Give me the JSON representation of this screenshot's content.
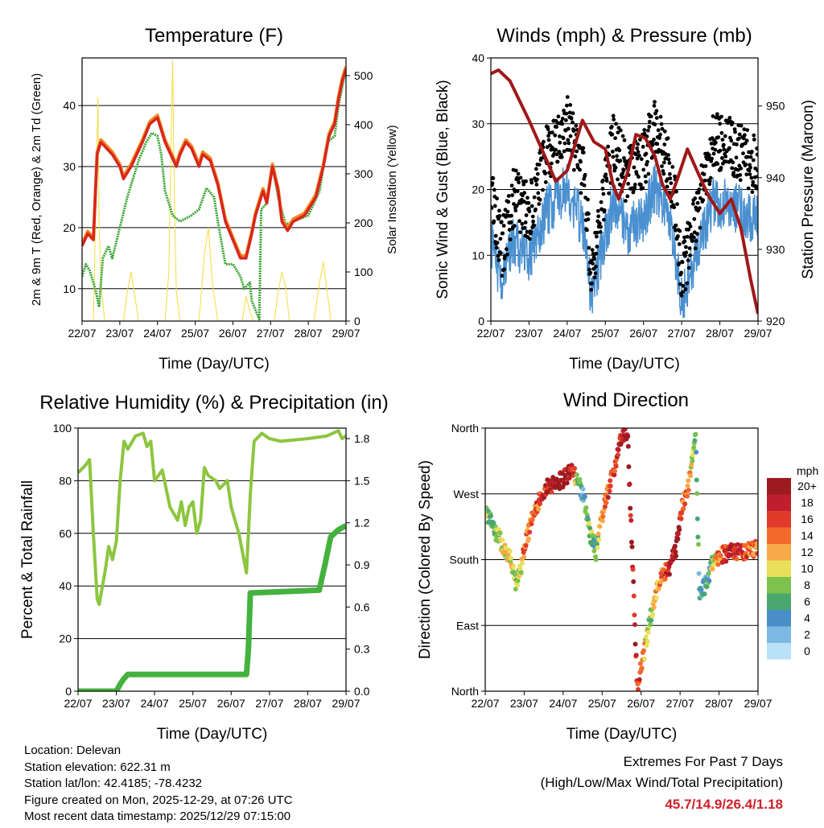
{
  "x_ticks": [
    "22/07",
    "23/07",
    "24/07",
    "25/07",
    "26/07",
    "27/07",
    "28/07",
    "29/07"
  ],
  "colors": {
    "temp": "#d9261c",
    "temp9m": "#f08a24",
    "dew": "#3aa635",
    "solar": "#f5dc3c",
    "wind": "#4a90d0",
    "gust": "#000000",
    "pressure": "#a01818",
    "rh": "#8cc63f",
    "precip": "#44b23e",
    "extremes": "#d0202a"
  },
  "chart_data": [
    {
      "type": "line",
      "title": "Temperature (F)",
      "xlabel": "Time (Day/UTC)",
      "ylabel": "2m & 9m T (Red, Orange) & 2m Td (Green)",
      "ylabel_right": "Solar Insolation (Yellow)",
      "ylim": [
        4.7,
        47.8
      ],
      "ylim_right": [
        0,
        536
      ],
      "yticks": [
        {
          "v": 10,
          "label": "10"
        },
        {
          "v": 20,
          "label": "20"
        },
        {
          "v": 30,
          "label": "30"
        },
        {
          "v": 40,
          "label": "40"
        }
      ],
      "yticks_right": [
        {
          "v": 0,
          "label": "0"
        },
        {
          "v": 100,
          "label": "100"
        },
        {
          "v": 200,
          "label": "200"
        },
        {
          "v": 300,
          "label": "300"
        },
        {
          "v": 400,
          "label": "400"
        },
        {
          "v": 500,
          "label": "500"
        }
      ],
      "series": [
        {
          "name": "2m T",
          "x": [
            0,
            0.15,
            0.3,
            0.4,
            0.5,
            0.8,
            1.0,
            1.1,
            1.3,
            1.6,
            1.8,
            2.0,
            2.2,
            2.5,
            2.6,
            2.75,
            2.9,
            3.1,
            3.2,
            3.4,
            3.6,
            3.8,
            4.0,
            4.2,
            4.35,
            4.5,
            4.6,
            4.8,
            4.9,
            5.05,
            5.2,
            5.3,
            5.45,
            5.6,
            5.9,
            6.2,
            6.4,
            6.55,
            6.7,
            6.8,
            6.9,
            7.0
          ],
          "y": [
            17,
            19,
            18,
            32,
            34,
            32,
            30,
            28,
            30,
            34,
            37,
            38,
            34,
            30,
            32,
            34,
            33,
            30,
            32,
            31,
            27,
            21,
            18,
            15,
            15,
            19,
            22,
            26,
            24,
            30,
            26,
            21,
            19.5,
            21,
            22,
            25,
            30,
            35,
            37,
            41,
            44,
            46
          ]
        },
        {
          "name": "2m Td",
          "x": [
            0,
            0.1,
            0.2,
            0.35,
            0.45,
            0.55,
            0.7,
            0.8,
            1.0,
            1.2,
            1.5,
            1.7,
            1.85,
            2.0,
            2.1,
            2.2,
            2.4,
            2.6,
            2.9,
            3.1,
            3.3,
            3.5,
            3.6,
            3.8,
            4.0,
            4.2,
            4.3,
            4.45,
            4.5,
            4.6,
            4.7,
            4.75,
            4.9,
            5.05,
            5.2,
            5.4,
            5.6,
            6.0,
            6.3,
            6.5,
            6.7,
            6.8,
            7.0
          ],
          "y": [
            12,
            14,
            13,
            10,
            7,
            15,
            17,
            15,
            20,
            25,
            31,
            34,
            35.5,
            35,
            32,
            26,
            22,
            21,
            22,
            23,
            26.5,
            25,
            21,
            14,
            14,
            12,
            10,
            11,
            8,
            6.5,
            5,
            23,
            24,
            30,
            25,
            20.5,
            21,
            22,
            26,
            34,
            35,
            40,
            46
          ]
        },
        {
          "name": "Solar",
          "axis": "right",
          "x": [
            0,
            0.3,
            0.38,
            0.42,
            0.45,
            0.5,
            0.6,
            1.1,
            1.2,
            1.3,
            1.4,
            1.5,
            2.2,
            2.3,
            2.4,
            2.45,
            2.5,
            2.6,
            3.1,
            3.25,
            3.35,
            3.45,
            3.6,
            4.25,
            4.35,
            4.45,
            4.55,
            5.1,
            5.2,
            5.3,
            5.4,
            5.5,
            6.15,
            6.3,
            6.4,
            6.5,
            6.6,
            7.0
          ],
          "y": [
            0,
            0,
            300,
            455,
            200,
            80,
            0,
            0,
            60,
            100,
            50,
            0,
            0,
            100,
            530,
            250,
            60,
            0,
            0,
            140,
            190,
            80,
            0,
            0,
            50,
            20,
            0,
            0,
            60,
            100,
            70,
            0,
            0,
            80,
            120,
            60,
            0,
            0
          ]
        }
      ]
    },
    {
      "type": "line",
      "title": "Winds (mph) & Pressure (mb)",
      "xlabel": "Time (Day/UTC)",
      "ylabel": "Sonic Wind & Gust (Blue, Black)",
      "ylabel_right": "Station Pressure (Maroon)",
      "ylim": [
        0,
        40
      ],
      "ylim_right": [
        920,
        956.7
      ],
      "yticks": [
        {
          "v": 0,
          "label": "0"
        },
        {
          "v": 10,
          "label": "10"
        },
        {
          "v": 20,
          "label": "20"
        },
        {
          "v": 30,
          "label": "30"
        },
        {
          "v": 40,
          "label": "40"
        }
      ],
      "yticks_right": [
        {
          "v": 920,
          "label": "920"
        },
        {
          "v": 930,
          "label": "930"
        },
        {
          "v": 940,
          "label": "940"
        },
        {
          "v": 950,
          "label": "950"
        }
      ],
      "series": [
        {
          "name": "Sonic Wind",
          "x": [
            0,
            0.3,
            0.6,
            1.0,
            1.5,
            2.0,
            2.4,
            2.65,
            2.8,
            3.2,
            3.6,
            4.0,
            4.3,
            4.5,
            4.8,
            5.0,
            5.3,
            5.8,
            6.2,
            6.5,
            7.0
          ],
          "y": [
            12,
            6,
            12,
            10,
            17,
            20,
            15,
            3,
            8,
            18,
            14,
            16,
            20,
            18,
            12,
            3,
            8,
            18,
            18,
            17,
            15
          ]
        },
        {
          "name": "Gust",
          "derived_from": "Sonic Wind"
        },
        {
          "name": "Pressure",
          "axis": "right",
          "x": [
            0,
            0.2,
            0.5,
            1.0,
            1.5,
            1.7,
            2.0,
            2.4,
            2.7,
            3.0,
            3.2,
            3.35,
            3.6,
            3.8,
            4.05,
            4.3,
            4.5,
            4.7,
            4.9,
            5.15,
            5.4,
            5.7,
            6.0,
            6.3,
            6.55,
            6.8,
            7.0
          ],
          "y": [
            954.5,
            955,
            953.5,
            948,
            942,
            939.5,
            941,
            948,
            945,
            944,
            939,
            937,
            941,
            946,
            945.5,
            943,
            939,
            937,
            940,
            944,
            941,
            937.5,
            935,
            937,
            933,
            926,
            921
          ]
        }
      ]
    },
    {
      "type": "line",
      "title": "Relative Humidity (%) & Precipitation (in)",
      "xlabel": "Time (Day/UTC)",
      "ylabel": "Percent & Total Rainfall",
      "ylim": [
        0,
        100
      ],
      "ylim_right": [
        0,
        1.875
      ],
      "yticks": [
        {
          "v": 0,
          "label": "0"
        },
        {
          "v": 20,
          "label": "20"
        },
        {
          "v": 40,
          "label": "40"
        },
        {
          "v": 60,
          "label": "60"
        },
        {
          "v": 80,
          "label": "80"
        },
        {
          "v": 100,
          "label": "100"
        }
      ],
      "yticks_right": [
        {
          "v": 0,
          "label": "0.0"
        },
        {
          "v": 0.3,
          "label": "0.3"
        },
        {
          "v": 0.6,
          "label": "0.6"
        },
        {
          "v": 0.9,
          "label": "0.9"
        },
        {
          "v": 1.2,
          "label": "1.2"
        },
        {
          "v": 1.5,
          "label": "1.5"
        },
        {
          "v": 1.8,
          "label": "1.8"
        }
      ],
      "series": [
        {
          "name": "RH",
          "x": [
            0,
            0.2,
            0.3,
            0.4,
            0.5,
            0.55,
            0.7,
            0.8,
            0.9,
            1.0,
            1.1,
            1.2,
            1.3,
            1.5,
            1.7,
            1.8,
            1.9,
            2.0,
            2.2,
            2.4,
            2.6,
            2.7,
            2.8,
            2.9,
            3.0,
            3.1,
            3.2,
            3.3,
            3.4,
            3.6,
            3.7,
            3.9,
            4.0,
            4.2,
            4.4,
            4.5,
            4.6,
            4.8,
            5.0,
            5.3,
            6.0,
            6.5,
            6.8,
            6.9,
            7.0
          ],
          "y": [
            83,
            86,
            88,
            60,
            35,
            33,
            45,
            55,
            50,
            57,
            80,
            95,
            92,
            97,
            98,
            93,
            95,
            80,
            84,
            70,
            65,
            72,
            63,
            70,
            72,
            60,
            65,
            85,
            82,
            80,
            77,
            80,
            70,
            60,
            45,
            75,
            95,
            98,
            96,
            95,
            96,
            97,
            99,
            96,
            97
          ]
        },
        {
          "name": "Total Precipitation",
          "axis": "right",
          "x": [
            0,
            1.0,
            1.1,
            1.2,
            1.3,
            4.4,
            4.45,
            4.5,
            6.3,
            6.45,
            6.6,
            6.8,
            7.0
          ],
          "y": [
            0,
            0,
            0.05,
            0.09,
            0.12,
            0.12,
            0.3,
            0.7,
            0.72,
            0.9,
            1.1,
            1.15,
            1.18
          ]
        }
      ]
    },
    {
      "type": "scatter",
      "title": "Wind Direction",
      "xlabel": "Time (Day/UTC)",
      "ylabel": "Direction (Colored By Speed)",
      "ylim": [
        0,
        360
      ],
      "yticks": [
        {
          "v": 0,
          "label": "North"
        },
        {
          "v": 90,
          "label": "East"
        },
        {
          "v": 180,
          "label": "South"
        },
        {
          "v": 270,
          "label": "West"
        },
        {
          "v": 360,
          "label": "North"
        }
      ],
      "series": [
        {
          "name": "Direction",
          "x": [
            0,
            0.15,
            0.3,
            0.5,
            0.65,
            0.8,
            0.9,
            1.0,
            1.2,
            1.4,
            1.6,
            1.8,
            2.0,
            2.2,
            2.35,
            2.5,
            2.6,
            2.7,
            2.85,
            2.95,
            3.1,
            3.3,
            3.5,
            3.65,
            3.9,
            4.1,
            4.2,
            4.35,
            4.5,
            4.7,
            4.9,
            5.05,
            5.2,
            5.3,
            5.4,
            5.5,
            5.7,
            5.8,
            6.0,
            6.3,
            6.6,
            6.8,
            7.0
          ],
          "y": [
            250,
            230,
            215,
            195,
            180,
            145,
            165,
            195,
            235,
            260,
            280,
            285,
            290,
            300,
            290,
            270,
            245,
            215,
            190,
            225,
            265,
            300,
            350,
            355,
            5,
            60,
            90,
            130,
            160,
            165,
            195,
            250,
            280,
            310,
            350,
            130,
            150,
            175,
            185,
            190,
            190,
            195,
            195
          ],
          "speed": [
            12,
            6,
            8,
            10,
            10,
            8,
            10,
            14,
            14,
            16,
            18,
            20,
            20,
            18,
            10,
            4,
            6,
            8,
            6,
            12,
            14,
            16,
            18,
            20,
            16,
            12,
            8,
            10,
            14,
            18,
            20,
            14,
            14,
            10,
            6,
            4,
            4,
            8,
            14,
            18,
            16,
            14,
            14
          ]
        }
      ],
      "legend": {
        "title": "mph",
        "labels": [
          "20+",
          "18",
          "16",
          "14",
          "12",
          "10",
          "8",
          "6",
          "4",
          "2",
          "0"
        ],
        "colors": [
          "#9b1b1e",
          "#be1e2d",
          "#e03a2a",
          "#f26a2b",
          "#f8a948",
          "#e8e05a",
          "#7dc24c",
          "#4aa76e",
          "#4a8ec8",
          "#7db9e5",
          "#b9e2f7"
        ]
      }
    }
  ],
  "footer": {
    "location": "Location: Delevan",
    "elevation": "Station elevation: 622.31 m",
    "latlon": "Station lat/lon: 42.4185; -78.4232",
    "created": "Figure created on Mon, 2025-12-29, at 07:26 UTC",
    "recent": "Most recent data timestamp: 2025/12/29 07:15:00",
    "extremes_title": "Extremes For Past 7 Days",
    "extremes_sub": "(High/Low/Max Wind/Total Precipitation)",
    "extremes_values": "45.7/14.9/26.4/1.18"
  }
}
